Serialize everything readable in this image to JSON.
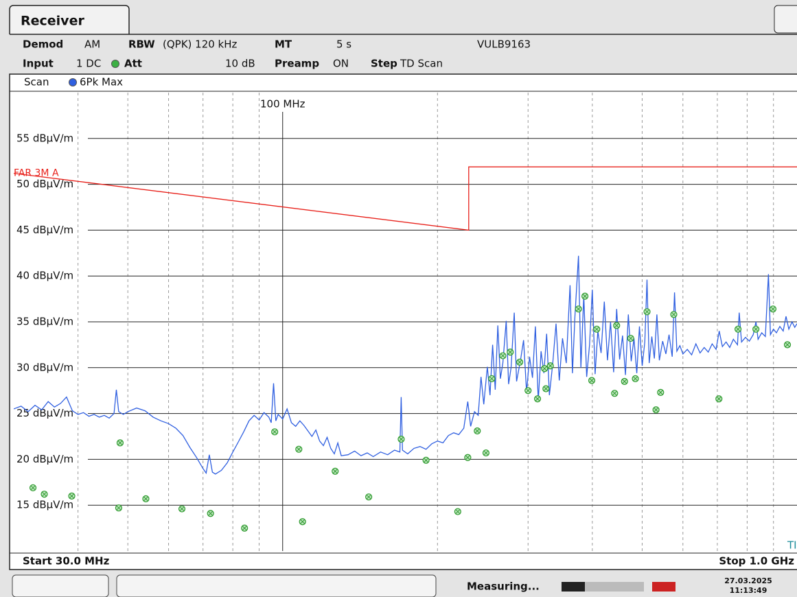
{
  "header": {
    "title": "Receiver",
    "demod_label": "Demod",
    "demod": "AM",
    "rbw_label": "RBW",
    "rbw": "(QPK) 120 kHz",
    "mt_label": "MT",
    "mt": "5 s",
    "antenna": "VULB9163",
    "input_label": "Input",
    "input": "1 DC",
    "att_label": "Att",
    "att": "10 dB",
    "preamp_label": "Preamp",
    "preamp": "ON",
    "step_label": "Step",
    "step": "TD Scan",
    "scan": "Scan"
  },
  "footer": {
    "start": "Start 30.0 MHz",
    "stop": "Stop 1.0 GHz",
    "status": "Measuring...",
    "date": "27.03.2025",
    "time": "11:13:49",
    "corner": "TI"
  },
  "chart_data": {
    "type": "line",
    "xlog": true,
    "xlim": [
      30,
      1000
    ],
    "ylim": [
      10,
      60
    ],
    "xticks": [
      {
        "value": 100,
        "label": "100 MHz"
      }
    ],
    "xminor": [
      40,
      50,
      60,
      70,
      80,
      90,
      200,
      300,
      400,
      500,
      600,
      700,
      800,
      900
    ],
    "yticks": [
      {
        "value": 15,
        "label": "15 dBµV/m"
      },
      {
        "value": 20,
        "label": "20 dBµV/m"
      },
      {
        "value": 25,
        "label": "25 dBµV/m"
      },
      {
        "value": 30,
        "label": "30 dBµV/m"
      },
      {
        "value": 35,
        "label": "35 dBµV/m"
      },
      {
        "value": 40,
        "label": "40 dBµV/m"
      },
      {
        "value": 45,
        "label": "45 dBµV/m"
      },
      {
        "value": 50,
        "label": "50 dBµV/m"
      },
      {
        "value": 55,
        "label": "55 dBµV/m"
      }
    ],
    "grid": true,
    "series": [
      {
        "name": "6Pk Max",
        "color": "#2f5fe0",
        "mode": "line",
        "x": [
          30,
          31,
          32,
          33,
          34,
          35,
          36,
          37,
          38,
          39,
          40,
          41,
          42,
          43,
          44,
          45,
          46,
          47,
          47.5,
          48,
          49,
          50,
          52,
          54,
          56,
          58,
          60,
          62,
          64,
          66,
          68,
          70,
          71,
          72,
          73,
          74,
          76,
          78,
          80,
          82,
          84,
          86,
          88,
          90,
          92,
          94,
          95,
          96,
          97,
          98,
          100,
          102,
          104,
          106,
          108,
          110,
          112,
          114,
          116,
          118,
          120,
          122,
          124,
          126,
          128,
          130,
          134,
          138,
          142,
          146,
          150,
          155,
          160,
          165,
          169,
          170,
          171,
          175,
          180,
          185,
          190,
          195,
          200,
          205,
          210,
          215,
          220,
          225,
          229,
          232,
          236,
          240,
          243,
          246,
          250,
          253,
          256,
          259,
          262,
          265,
          268,
          272,
          275,
          278,
          282,
          285,
          290,
          294,
          298,
          302,
          306,
          310,
          314,
          318,
          322,
          326,
          330,
          335,
          340,
          345,
          350,
          356,
          362,
          366,
          370,
          376,
          380,
          385,
          390,
          395,
          400,
          405,
          410,
          416,
          422,
          428,
          434,
          440,
          446,
          452,
          458,
          464,
          470,
          476,
          482,
          488,
          494,
          500,
          506,
          511,
          516,
          522,
          528,
          534,
          540,
          548,
          556,
          564,
          572,
          578,
          584,
          592,
          600,
          612,
          624,
          636,
          648,
          660,
          672,
          684,
          696,
          706,
          716,
          728,
          740,
          752,
          766,
          772,
          780,
          794,
          808,
          822,
          832,
          840,
          854,
          868,
          880,
          888,
          900,
          912,
          926,
          940,
          952,
          964,
          978,
          990,
          1000
        ],
        "values": [
          25.5,
          25.8,
          25.2,
          25.9,
          25.4,
          26.3,
          25.7,
          26.1,
          26.8,
          25.3,
          24.9,
          25.1,
          24.7,
          24.9,
          24.6,
          24.8,
          24.5,
          25.0,
          27.6,
          25.2,
          24.9,
          25.2,
          25.6,
          25.3,
          24.6,
          24.2,
          23.9,
          23.4,
          22.6,
          21.3,
          20.2,
          19.0,
          18.5,
          20.5,
          18.6,
          18.4,
          18.8,
          19.6,
          20.8,
          21.9,
          23.0,
          24.2,
          24.8,
          24.3,
          25.1,
          24.6,
          24.0,
          28.3,
          24.2,
          24.9,
          24.4,
          25.5,
          24.0,
          23.6,
          24.2,
          23.7,
          23.1,
          22.5,
          23.2,
          22.0,
          21.5,
          22.4,
          21.2,
          20.6,
          21.8,
          20.4,
          20.5,
          20.9,
          20.4,
          20.7,
          20.3,
          20.8,
          20.5,
          21.0,
          20.8,
          26.8,
          21.0,
          20.6,
          21.2,
          21.4,
          21.1,
          21.7,
          22.0,
          21.8,
          22.6,
          22.9,
          22.7,
          23.4,
          26.3,
          23.6,
          25.2,
          24.8,
          29.0,
          26.0,
          30.1,
          27.0,
          32.5,
          27.6,
          34.6,
          28.8,
          30.5,
          35.1,
          28.2,
          30.0,
          36.0,
          28.5,
          30.8,
          33.0,
          27.3,
          31.2,
          28.9,
          34.5,
          26.4,
          31.8,
          29.4,
          33.7,
          27.0,
          30.4,
          34.8,
          28.6,
          33.2,
          30.5,
          39.0,
          29.4,
          35.6,
          42.2,
          30.0,
          37.9,
          29.0,
          32.5,
          38.5,
          29.3,
          34.0,
          31.6,
          37.2,
          30.8,
          35.0,
          29.5,
          36.4,
          30.9,
          33.5,
          29.2,
          35.8,
          30.7,
          33.2,
          29.4,
          34.5,
          30.2,
          32.8,
          39.6,
          30.5,
          33.4,
          31.0,
          35.8,
          30.8,
          32.9,
          31.5,
          33.6,
          31.2,
          38.2,
          31.8,
          32.4,
          31.5,
          32.0,
          31.4,
          32.6,
          31.6,
          32.2,
          31.7,
          32.6,
          32.0,
          34.0,
          32.3,
          32.8,
          32.2,
          33.1,
          32.5,
          36.0,
          32.8,
          33.3,
          32.9,
          33.6,
          35.0,
          33.1,
          33.8,
          33.4,
          40.2,
          33.6,
          34.2,
          33.8,
          34.5,
          34.0,
          35.6,
          34.2,
          35.0,
          34.4,
          34.8
        ]
      },
      {
        "name": "FAR 3M A",
        "color": "#e8201a",
        "mode": "line",
        "x": [
          30,
          230,
          230,
          1000
        ],
        "values": [
          51.2,
          45,
          51.9,
          51.9
        ]
      },
      {
        "color": "#2e9a2e",
        "mode": "markers",
        "x": [
          32.7,
          34.4,
          38.9,
          48.0,
          48.3,
          54.2,
          63.7,
          72.4,
          84.3,
          96.5,
          107.5,
          109.3,
          126.5,
          147,
          170,
          190,
          219,
          229,
          239,
          248.5,
          255,
          268,
          277,
          289,
          300,
          313,
          325,
          323,
          331.5,
          376,
          387,
          399,
          408,
          442,
          446,
          462,
          475,
          485,
          511,
          532,
          543,
          576,
          705,
          768,
          832,
          898,
          958
        ],
        "values": [
          16.9,
          16.2,
          16.0,
          14.7,
          21.8,
          15.7,
          14.6,
          14.1,
          12.5,
          23.0,
          21.1,
          13.2,
          18.7,
          15.9,
          22.2,
          19.9,
          14.3,
          20.2,
          23.1,
          20.7,
          28.8,
          31.3,
          31.7,
          30.6,
          27.5,
          26.6,
          27.7,
          29.9,
          30.2,
          36.4,
          37.8,
          28.6,
          34.2,
          27.2,
          34.6,
          28.5,
          33.2,
          28.8,
          36.1,
          25.4,
          27.3,
          35.8,
          26.6,
          34.2,
          34.2,
          36.4,
          32.5
        ]
      }
    ]
  }
}
